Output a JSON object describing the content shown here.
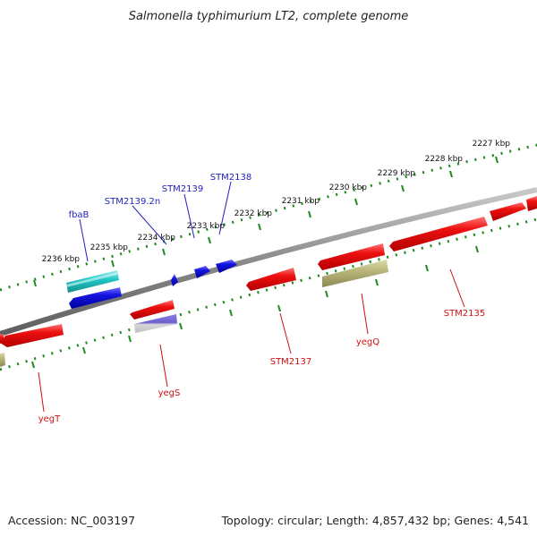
{
  "title": "Salmonella typhimurium LT2, complete genome",
  "footer": {
    "accession": "Accession: NC_003197",
    "topology": "Topology: circular; Length: 4,857,432 bp; Genes: 4,541"
  },
  "colors": {
    "backbone": "#8a8a8a",
    "ticks": "#1d8a1d",
    "gene_blue": "#1515e0",
    "gene_red": "#ee1111",
    "gene_cyan": "#22c6c6",
    "gene_olive": "#b8b67a",
    "gene_purple": "#7b6fd6",
    "label_blue": "#1f1fbf",
    "label_red": "#d01010"
  },
  "scale": {
    "ticks": [
      "2227 kbp",
      "2228 kbp",
      "2229 kbp",
      "2230 kbp",
      "2231 kbp",
      "2232 kbp",
      "2233 kbp",
      "2234 kbp",
      "2235 kbp",
      "2236 kbp"
    ]
  },
  "genes_top": [
    {
      "name": "STM2138"
    },
    {
      "name": "STM2139"
    },
    {
      "name": "STM2139.2n"
    },
    {
      "name": "fbaB"
    }
  ],
  "genes_bottom": [
    {
      "name": "STM2135"
    },
    {
      "name": "yegQ"
    },
    {
      "name": "STM2137"
    },
    {
      "name": "yegS"
    },
    {
      "name": "yegT"
    }
  ]
}
